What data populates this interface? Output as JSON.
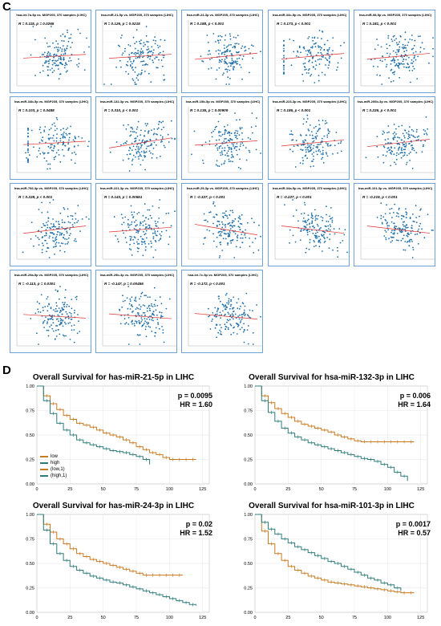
{
  "panel_c_label": "C",
  "panel_d_label": "D",
  "colors": {
    "scatter_point": "#1f6fa8",
    "trend": "#e03030",
    "low": "#c87a1e",
    "high": "#2e7d7a",
    "border": "#6ea3d8"
  },
  "chart_data": [
    {
      "type": "scatter",
      "title": "hsa-let-7a-5p vs. MGP205, 370 samples (LIHC)",
      "annotation": "R = 0.115, p = 0.0265",
      "r": 0.115
    },
    {
      "type": "scatter",
      "title": "hsa-miR-21-5p vs. MGP205, 370 samples (LIHC)",
      "annotation": "R = 0.126, p = 0.0215",
      "r": 0.126
    },
    {
      "type": "scatter",
      "title": "hsa-miR-24-3p vs. MGP205, 370 samples (LIHC)",
      "annotation": "R = 0.188, p < 0.001",
      "r": 0.188
    },
    {
      "type": "scatter",
      "title": "hsa-miR-34c-5p vs. MGP205, 370 samples (LIHC)",
      "annotation": "R = 0.173, p < 0.001",
      "r": 0.173
    },
    {
      "type": "scatter",
      "title": "hsa-miR-98-5p vs. MGP205, 370 samples (LIHC)",
      "annotation": "R = 0.181, p < 0.001",
      "r": 0.181
    },
    {
      "type": "scatter",
      "title": "hsa-miR-34b-5p vs. MGP205, 370 samples (LIHC)",
      "annotation": "R = 0.103, p = 0.0488",
      "r": 0.103
    },
    {
      "type": "scatter",
      "title": "hsa-miR-132-3p vs. MGP205, 370 samples (LIHC)",
      "annotation": "R = 0.310, p < 0.001",
      "r": 0.31
    },
    {
      "type": "scatter",
      "title": "hsa-miR-15b-5p vs. MGP205, 370 samples (LIHC)",
      "annotation": "R = 0.135, p = 0.00909",
      "r": 0.135
    },
    {
      "type": "scatter",
      "title": "hsa-miR-223-3p vs. MGP205, 370 samples (LIHC)",
      "annotation": "R = 0.186, p < 0.001",
      "r": 0.186
    },
    {
      "type": "scatter",
      "title": "hsa-miR-200b-3p vs. MGP205, 370 samples (LIHC)",
      "annotation": "R = 0.226, p < 0.001",
      "r": 0.226
    },
    {
      "type": "scatter",
      "title": "hsa-miR-766-3p vs. MGP205, 370 samples (LIHC)",
      "annotation": "R = 0.228, p < 0.001",
      "r": 0.228
    },
    {
      "type": "scatter",
      "title": "hsa-miR-221-3p vs. MGP205, 370 samples (LIHC)",
      "annotation": "R = 0.143, p = 0.00561",
      "r": 0.143
    },
    {
      "type": "scatter",
      "title": "hsa-miR-25-3p vs. MGP205, 370 samples (LIHC)",
      "annotation": "R = -0.327, p < 0.001",
      "r": -0.327
    },
    {
      "type": "scatter",
      "title": "hsa-miR-34a-5p vs. MGP205, 370 samples (LIHC)",
      "annotation": "R = -0.227, p < 0.001",
      "r": -0.227
    },
    {
      "type": "scatter",
      "title": "hsa-miR-101-3p vs. MGP205, 370 samples (LIHC)",
      "annotation": "R = -0.219, p < 0.001",
      "r": -0.219
    },
    {
      "type": "scatter",
      "title": "hsa-miR-29a-5p vs. MGP205, 370 samples (LIHC)",
      "annotation": "R = -0.113, p = 0.0301",
      "r": -0.113
    },
    {
      "type": "scatter",
      "title": "hsa-miR-29b-3p vs. MGP205, 370 samples (LIHC)",
      "annotation": "R = -0.147, p = 0.00456",
      "r": -0.147
    },
    {
      "type": "scatter",
      "title": "hsa-let-7c-5p vs. MGP205, 370 samples (LIHC)",
      "annotation": "R = -0.172, p < 0.001",
      "r": -0.172
    },
    {
      "type": "line",
      "title": "Overall Survival for has-miR-21-5p in LIHC",
      "p_text": "p = 0.0095",
      "hr_text": "HR = 1.60",
      "x_ticks": [
        0,
        25,
        50,
        75,
        100,
        125
      ],
      "y_ticks": [
        "0.00",
        "0.25",
        "0.50",
        "0.75",
        "1.00"
      ],
      "xlim": [
        0,
        130
      ],
      "ylim": [
        0,
        1
      ],
      "legend": [
        "low",
        "high",
        "(low,1)",
        "(high,1)"
      ],
      "series": [
        {
          "name": "low",
          "x": [
            0,
            5,
            10,
            15,
            20,
            25,
            30,
            35,
            40,
            45,
            50,
            55,
            60,
            65,
            70,
            75,
            80,
            85,
            90,
            95,
            100,
            105,
            110,
            115,
            120
          ],
          "y": [
            1.0,
            0.9,
            0.82,
            0.76,
            0.7,
            0.66,
            0.62,
            0.6,
            0.58,
            0.55,
            0.52,
            0.5,
            0.48,
            0.45,
            0.42,
            0.38,
            0.35,
            0.32,
            0.3,
            0.27,
            0.25,
            0.25,
            0.25,
            0.25,
            0.25
          ]
        },
        {
          "name": "high",
          "x": [
            0,
            5,
            10,
            15,
            20,
            25,
            30,
            35,
            40,
            45,
            50,
            55,
            60,
            65,
            70,
            75,
            80,
            85
          ],
          "y": [
            1.0,
            0.85,
            0.72,
            0.62,
            0.55,
            0.5,
            0.45,
            0.42,
            0.4,
            0.38,
            0.36,
            0.34,
            0.33,
            0.32,
            0.3,
            0.28,
            0.25,
            0.2
          ]
        }
      ]
    },
    {
      "type": "line",
      "title": "Overall Survival for hsa-miR-132-3p in LIHC",
      "p_text": "p = 0.006",
      "hr_text": "HR = 1.64",
      "x_ticks": [
        0,
        25,
        50,
        75,
        100,
        125
      ],
      "y_ticks": [
        "0.00",
        "0.25",
        "0.50",
        "0.75",
        "1.00"
      ],
      "xlim": [
        0,
        130
      ],
      "ylim": [
        0,
        1
      ],
      "series": [
        {
          "name": "low",
          "x": [
            0,
            5,
            10,
            15,
            20,
            25,
            30,
            35,
            40,
            45,
            50,
            55,
            60,
            65,
            70,
            75,
            80,
            85,
            90,
            95,
            100,
            105,
            110,
            115,
            120
          ],
          "y": [
            1.0,
            0.9,
            0.83,
            0.77,
            0.72,
            0.68,
            0.64,
            0.61,
            0.59,
            0.57,
            0.55,
            0.53,
            0.5,
            0.48,
            0.46,
            0.44,
            0.43,
            0.43,
            0.43,
            0.43,
            0.43,
            0.43,
            0.43,
            0.43,
            0.43
          ]
        },
        {
          "name": "high",
          "x": [
            0,
            5,
            10,
            15,
            20,
            25,
            30,
            35,
            40,
            45,
            50,
            55,
            60,
            65,
            70,
            75,
            80,
            85,
            90,
            95,
            100,
            105,
            110,
            115
          ],
          "y": [
            1.0,
            0.85,
            0.73,
            0.64,
            0.57,
            0.52,
            0.48,
            0.45,
            0.42,
            0.4,
            0.38,
            0.36,
            0.34,
            0.32,
            0.3,
            0.28,
            0.26,
            0.25,
            0.23,
            0.2,
            0.17,
            0.12,
            0.08,
            0.03
          ]
        }
      ]
    },
    {
      "type": "line",
      "title": "Overall Survival for has-miR-24-3p in LIHC",
      "p_text": "p = 0.02",
      "hr_text": "HR = 1.52",
      "x_ticks": [
        0,
        25,
        50,
        75,
        100,
        125
      ],
      "y_ticks": [
        "0.00",
        "0.25",
        "0.50",
        "0.75",
        "1.00"
      ],
      "xlim": [
        0,
        130
      ],
      "ylim": [
        0,
        1
      ],
      "series": [
        {
          "name": "low",
          "x": [
            0,
            5,
            10,
            15,
            20,
            25,
            30,
            35,
            40,
            45,
            50,
            55,
            60,
            65,
            70,
            75,
            80,
            85,
            90,
            95,
            100,
            105,
            110
          ],
          "y": [
            1.0,
            0.9,
            0.82,
            0.75,
            0.7,
            0.65,
            0.6,
            0.57,
            0.54,
            0.52,
            0.5,
            0.48,
            0.46,
            0.44,
            0.42,
            0.4,
            0.38,
            0.38,
            0.38,
            0.38,
            0.38,
            0.38,
            0.38
          ]
        },
        {
          "name": "high",
          "x": [
            0,
            5,
            10,
            15,
            20,
            25,
            30,
            35,
            40,
            45,
            50,
            55,
            60,
            65,
            70,
            75,
            80,
            85,
            90,
            95,
            100,
            105,
            110,
            115,
            120
          ],
          "y": [
            1.0,
            0.84,
            0.7,
            0.6,
            0.53,
            0.47,
            0.43,
            0.4,
            0.37,
            0.35,
            0.33,
            0.31,
            0.3,
            0.28,
            0.26,
            0.24,
            0.22,
            0.2,
            0.18,
            0.16,
            0.14,
            0.12,
            0.1,
            0.08,
            0.07
          ]
        }
      ]
    },
    {
      "type": "line",
      "title": "Overall Survival for hsa-miR-101-3p in LIHC",
      "p_text": "p = 0.0017",
      "hr_text": "HR = 0.57",
      "x_ticks": [
        0,
        25,
        50,
        75,
        100,
        125
      ],
      "y_ticks": [
        "0.00",
        "0.25",
        "0.50",
        "0.75",
        "1.00"
      ],
      "xlim": [
        0,
        130
      ],
      "ylim": [
        0,
        1
      ],
      "series": [
        {
          "name": "low",
          "x": [
            0,
            5,
            10,
            15,
            20,
            25,
            30,
            35,
            40,
            45,
            50,
            55,
            60,
            65,
            70,
            75,
            80,
            85,
            90,
            95,
            100,
            105,
            110,
            115,
            120
          ],
          "y": [
            1.0,
            0.83,
            0.7,
            0.6,
            0.53,
            0.47,
            0.43,
            0.4,
            0.37,
            0.35,
            0.33,
            0.31,
            0.3,
            0.29,
            0.28,
            0.27,
            0.26,
            0.25,
            0.24,
            0.23,
            0.22,
            0.21,
            0.2,
            0.2,
            0.2
          ]
        },
        {
          "name": "high",
          "x": [
            0,
            5,
            10,
            15,
            20,
            25,
            30,
            35,
            40,
            45,
            50,
            55,
            60,
            65,
            70,
            75,
            80,
            85,
            90,
            95,
            100,
            105,
            110
          ],
          "y": [
            1.0,
            0.92,
            0.85,
            0.8,
            0.75,
            0.71,
            0.67,
            0.64,
            0.61,
            0.58,
            0.55,
            0.52,
            0.5,
            0.47,
            0.44,
            0.41,
            0.38,
            0.35,
            0.33,
            0.3,
            0.28,
            0.25,
            0.22
          ]
        }
      ]
    }
  ]
}
